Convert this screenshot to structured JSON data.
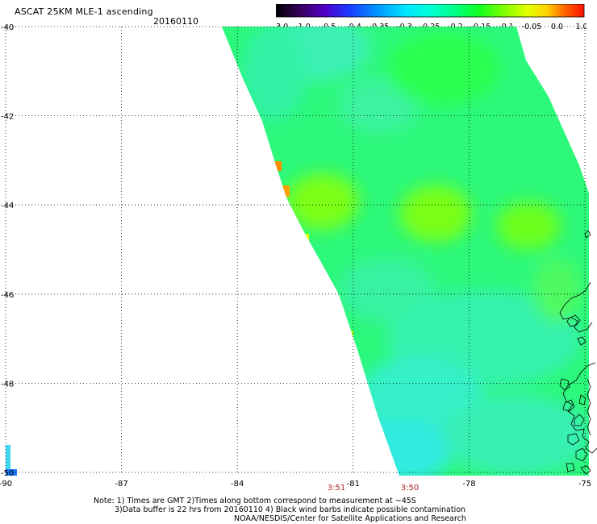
{
  "header": {
    "title": "ASCAT 25KM MLE-1 ascending",
    "date": "20160110"
  },
  "colorbar": {
    "labels": [
      "-3.0",
      "-1.0",
      "-0.5",
      "-0.4",
      "-0.35",
      "-0.3",
      "-0.25",
      "-0.2",
      "-0.15",
      "-0.1",
      "-0.05",
      "0.0",
      "1.0"
    ],
    "colors": [
      "#000000",
      "#5a0090",
      "#2a2aff",
      "#0090ff",
      "#00dcff",
      "#00ffd0",
      "#00ff7a",
      "#20ff00",
      "#9aff00",
      "#e6ff00",
      "#ffb000",
      "#ff3000",
      "#ff0000"
    ]
  },
  "map": {
    "lat_labels": [
      "-40",
      "-42",
      "-44",
      "-46",
      "-48",
      "-50"
    ],
    "lon_labels": [
      "-90",
      "-87",
      "-84",
      "-81",
      "-78",
      "-75"
    ],
    "lat_values": [
      -40,
      -42,
      -44,
      -46,
      -48,
      -50
    ],
    "lon_values": [
      -90,
      -87,
      -84,
      -81,
      -78,
      -75
    ],
    "lat_range": [
      -50,
      -40
    ],
    "lon_range": [
      -90,
      -75
    ],
    "grid": "dotted",
    "time_labels": [
      "3:51",
      "3:50"
    ]
  },
  "notes": {
    "line1": "Note: 1) Times are GMT 2)Times along bottom correspond to measurement at ~45S",
    "line2": "3)Data buffer is 22 hrs from 20160110 4) Black wind barbs indicate possible contamination",
    "line3": "NOAA/NESDIS/Center for Satellite Applications and Research"
  }
}
